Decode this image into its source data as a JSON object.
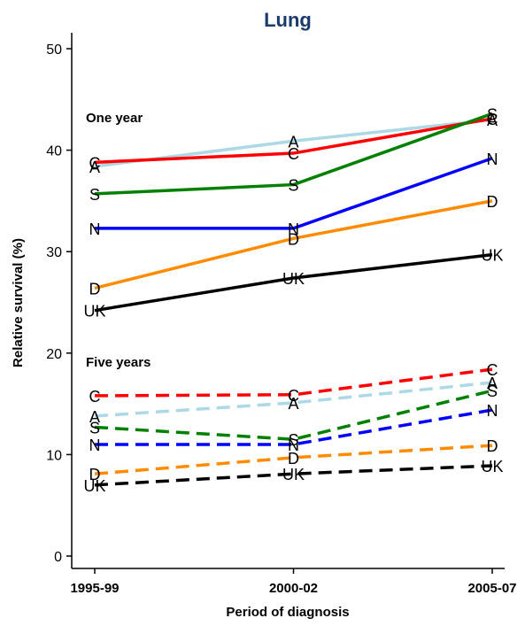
{
  "chart_data": {
    "type": "line",
    "title": "Lung",
    "xlabel": "Period of diagnosis",
    "ylabel": "Relative survival (%)",
    "x": [
      "1995-99",
      "2000-02",
      "2005-07"
    ],
    "ylim": [
      0,
      50
    ],
    "yticks": [
      "0",
      "10",
      "20",
      "30",
      "40",
      "50"
    ],
    "grid": false,
    "title_color": "#1a3a6e",
    "panel_labels": [
      "One year",
      "Five years"
    ],
    "series": [
      {
        "group": "one",
        "style": "solid",
        "color": "#add8e6",
        "labels": [
          "A",
          "A",
          "A"
        ],
        "values": [
          38.4,
          40.9,
          43.0
        ]
      },
      {
        "group": "one",
        "style": "solid",
        "color": "#ff0000",
        "labels": [
          "C",
          "C",
          "C"
        ],
        "values": [
          38.8,
          39.7,
          43.1
        ]
      },
      {
        "group": "one",
        "style": "solid",
        "color": "#008000",
        "labels": [
          "S",
          "S",
          "S"
        ],
        "values": [
          35.7,
          36.6,
          43.6
        ]
      },
      {
        "group": "one",
        "style": "solid",
        "color": "#0000ff",
        "labels": [
          "N",
          "N",
          "N"
        ],
        "values": [
          32.3,
          32.3,
          39.2
        ]
      },
      {
        "group": "one",
        "style": "solid",
        "color": "#ff8c00",
        "labels": [
          "D",
          "D",
          "D"
        ],
        "values": [
          26.4,
          31.3,
          35.0
        ]
      },
      {
        "group": "one",
        "style": "solid",
        "color": "#000000",
        "labels": [
          "UK",
          "UK",
          "UK"
        ],
        "values": [
          24.2,
          27.4,
          29.7
        ]
      },
      {
        "group": "five",
        "style": "dashed",
        "color": "#ff0000",
        "labels": [
          "C",
          "C",
          "C"
        ],
        "values": [
          15.8,
          15.9,
          18.4
        ]
      },
      {
        "group": "five",
        "style": "dashed",
        "color": "#add8e6",
        "labels": [
          "A",
          "A",
          "A"
        ],
        "values": [
          13.8,
          15.1,
          17.1
        ]
      },
      {
        "group": "five",
        "style": "dashed",
        "color": "#008000",
        "labels": [
          "S",
          "S",
          "S"
        ],
        "values": [
          12.7,
          11.5,
          16.3
        ]
      },
      {
        "group": "five",
        "style": "dashed",
        "color": "#0000ff",
        "labels": [
          "N",
          "N",
          "N"
        ],
        "values": [
          11.0,
          11.0,
          14.4
        ]
      },
      {
        "group": "five",
        "style": "dashed",
        "color": "#ff8c00",
        "labels": [
          "D",
          "D",
          "D"
        ],
        "values": [
          8.1,
          9.7,
          10.9
        ]
      },
      {
        "group": "five",
        "style": "dashed",
        "color": "#000000",
        "labels": [
          "UK",
          "UK",
          "UK"
        ],
        "values": [
          7.0,
          8.1,
          8.9
        ]
      }
    ]
  }
}
